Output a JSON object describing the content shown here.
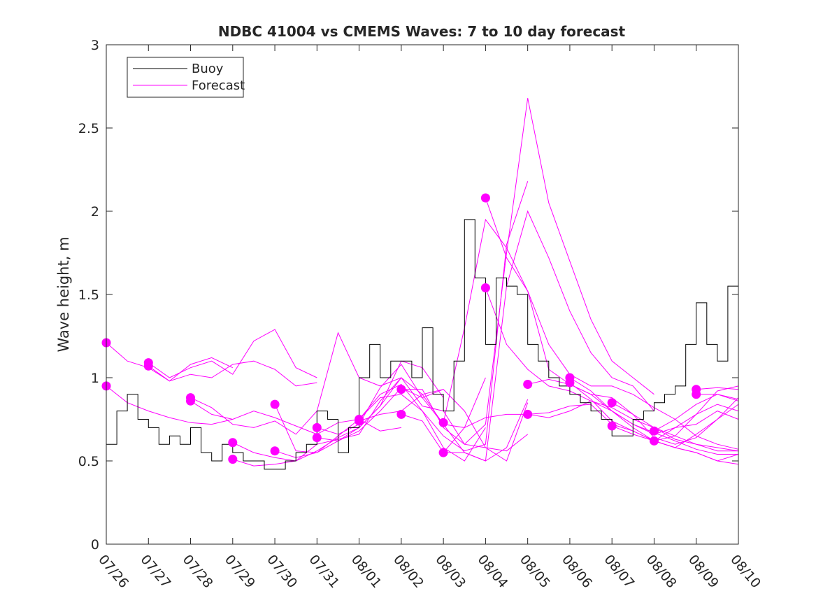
{
  "chart_data": {
    "type": "line",
    "title": "NDBC 41004 vs CMEMS Waves: 7 to 10 day forecast",
    "xlabel": "",
    "ylabel": "Wave height, m",
    "xlim": [
      "07/26",
      "08/10"
    ],
    "ylim": [
      0,
      3
    ],
    "x_ticks": [
      "07/26",
      "07/27",
      "07/28",
      "07/29",
      "07/30",
      "07/31",
      "08/01",
      "08/02",
      "08/03",
      "08/04",
      "08/05",
      "08/06",
      "08/07",
      "08/08",
      "08/09",
      "08/10"
    ],
    "y_ticks": [
      "0",
      "0.5",
      "1",
      "1.5",
      "2",
      "2.5",
      "3"
    ],
    "legend": {
      "placement": "top-left",
      "entries": [
        "Buoy",
        "Forecast"
      ]
    },
    "colors": {
      "buoy": "#000000",
      "forecast": "#ff00ff"
    },
    "buoy": {
      "x": [
        "07/26 00:00",
        "07/26 06:00",
        "07/26 12:00",
        "07/26 18:00",
        "07/27 00:00",
        "07/27 06:00",
        "07/27 12:00",
        "07/27 18:00",
        "07/28 00:00",
        "07/28 06:00",
        "07/28 12:00",
        "07/28 18:00",
        "07/29 00:00",
        "07/29 06:00",
        "07/29 12:00",
        "07/29 18:00",
        "07/30 00:00",
        "07/30 06:00",
        "07/30 12:00",
        "07/30 18:00",
        "07/31 00:00",
        "07/31 06:00",
        "07/31 12:00",
        "07/31 18:00",
        "08/01 00:00",
        "08/01 06:00",
        "08/01 12:00",
        "08/01 18:00",
        "08/02 00:00",
        "08/02 06:00",
        "08/02 12:00",
        "08/02 18:00",
        "08/03 00:00",
        "08/03 06:00",
        "08/03 12:00",
        "08/03 18:00",
        "08/04 00:00",
        "08/04 06:00",
        "08/04 12:00",
        "08/04 18:00",
        "08/05 00:00",
        "08/05 06:00",
        "08/05 12:00",
        "08/05 18:00",
        "08/06 00:00",
        "08/06 06:00",
        "08/06 12:00",
        "08/06 18:00",
        "08/07 00:00",
        "08/07 06:00",
        "08/07 12:00",
        "08/07 18:00",
        "08/08 00:00",
        "08/08 06:00",
        "08/08 12:00",
        "08/08 18:00",
        "08/09 00:00",
        "08/09 06:00",
        "08/09 12:00",
        "08/09 18:00"
      ],
      "values": [
        0.6,
        0.8,
        0.9,
        0.75,
        0.7,
        0.6,
        0.65,
        0.6,
        0.7,
        0.55,
        0.5,
        0.6,
        0.55,
        0.5,
        0.5,
        0.45,
        0.45,
        0.5,
        0.55,
        0.6,
        0.8,
        0.75,
        0.55,
        0.7,
        1.0,
        1.2,
        1.0,
        1.1,
        1.1,
        1.0,
        1.3,
        0.9,
        0.8,
        1.1,
        1.95,
        1.6,
        1.2,
        1.6,
        1.55,
        1.5,
        1.2,
        1.1,
        1.0,
        0.95,
        0.9,
        0.85,
        0.8,
        0.75,
        0.65,
        0.65,
        0.75,
        0.8,
        0.85,
        0.9,
        0.95,
        1.2,
        1.45,
        1.2,
        1.1,
        1.55
      ]
    },
    "forecast_initial_points": {
      "x": [
        "07/26 00:00",
        "07/26 00:00",
        "07/27 00:00",
        "07/27 00:00",
        "07/28 00:00",
        "07/28 00:00",
        "07/29 00:00",
        "07/29 00:00",
        "07/30 00:00",
        "07/30 00:00",
        "07/31 00:00",
        "07/31 00:00",
        "08/01 00:00",
        "08/01 00:00",
        "08/02 00:00",
        "08/02 00:00",
        "08/03 00:00",
        "08/03 00:00",
        "08/04 00:00",
        "08/04 00:00",
        "08/05 00:00",
        "08/05 00:00",
        "08/06 00:00",
        "08/06 00:00",
        "08/07 00:00",
        "08/07 00:00",
        "08/08 00:00",
        "08/08 00:00",
        "08/09 00:00",
        "08/09 00:00"
      ],
      "values": [
        1.21,
        0.95,
        1.09,
        1.07,
        0.88,
        0.86,
        0.61,
        0.51,
        0.84,
        0.56,
        0.7,
        0.64,
        0.75,
        0.74,
        0.93,
        0.78,
        0.73,
        0.55,
        2.08,
        1.54,
        0.96,
        0.78,
        1.0,
        0.97,
        0.85,
        0.71,
        0.68,
        0.62,
        0.93,
        0.9
      ]
    },
    "forecast_series": [
      {
        "start": "07/26",
        "days": [
          0,
          0.5,
          1,
          1.5,
          2,
          2.5,
          3
        ],
        "values": [
          1.21,
          1.1,
          1.06,
          0.98,
          1.08,
          1.12,
          1.06
        ]
      },
      {
        "start": "07/26",
        "days": [
          0,
          0.5,
          1,
          1.5,
          2,
          2.5,
          3
        ],
        "values": [
          0.95,
          0.85,
          0.8,
          0.76,
          0.73,
          0.72,
          0.75
        ]
      },
      {
        "start": "07/27",
        "days": [
          0,
          0.5,
          1,
          1.5,
          2,
          2.5,
          3,
          3.5,
          4
        ],
        "values": [
          1.09,
          1.0,
          1.06,
          1.1,
          1.02,
          1.22,
          1.29,
          1.06,
          1.0
        ]
      },
      {
        "start": "07/27",
        "days": [
          0,
          0.5,
          1,
          1.5,
          2,
          2.5,
          3,
          3.5,
          4
        ],
        "values": [
          1.07,
          0.98,
          1.02,
          1.0,
          1.08,
          1.1,
          1.05,
          0.95,
          0.97
        ]
      },
      {
        "start": "07/28",
        "days": [
          0,
          0.5,
          1,
          1.5,
          2,
          2.5,
          3,
          3.5,
          4,
          4.5,
          5
        ],
        "values": [
          0.88,
          0.82,
          0.72,
          0.7,
          0.74,
          0.66,
          0.8,
          1.27,
          1.0,
          0.95,
          1.0
        ]
      },
      {
        "start": "07/28",
        "days": [
          0,
          0.5,
          1,
          1.5,
          2,
          2.5,
          3,
          3.5,
          4,
          4.5,
          5
        ],
        "values": [
          0.86,
          0.78,
          0.75,
          0.8,
          0.76,
          0.71,
          0.66,
          0.73,
          0.75,
          0.68,
          0.7
        ]
      },
      {
        "start": "07/29",
        "days": [
          0,
          0.5,
          1,
          1.5,
          2,
          2.5,
          3,
          3.5,
          4,
          4.5,
          5
        ],
        "values": [
          0.61,
          0.55,
          0.52,
          0.5,
          0.6,
          0.63,
          0.66,
          0.86,
          1.0,
          0.9,
          0.93
        ]
      },
      {
        "start": "07/29",
        "days": [
          0,
          0.5,
          1,
          1.5,
          2,
          2.5,
          3,
          3.5,
          4,
          4.5,
          5
        ],
        "values": [
          0.51,
          0.47,
          0.48,
          0.5,
          0.56,
          0.64,
          0.7,
          0.83,
          1.1,
          1.06,
          0.88
        ]
      },
      {
        "start": "07/30",
        "days": [
          0,
          0.5,
          1,
          1.5,
          2,
          2.5,
          3,
          3.5,
          4,
          4.5,
          5
        ],
        "values": [
          0.84,
          0.56,
          0.55,
          0.62,
          0.68,
          0.8,
          0.94,
          0.88,
          0.72,
          0.7,
          1.0
        ]
      },
      {
        "start": "07/30",
        "days": [
          0,
          0.5,
          1,
          1.5,
          2,
          2.5,
          3,
          3.5,
          4,
          4.5,
          5
        ],
        "values": [
          0.56,
          0.52,
          0.55,
          0.65,
          0.75,
          0.9,
          0.96,
          0.8,
          0.58,
          0.5,
          0.7
        ]
      },
      {
        "start": "07/31",
        "days": [
          0,
          0.5,
          1,
          1.5,
          2,
          2.5,
          3,
          3.5,
          4,
          4.5,
          5
        ],
        "values": [
          0.7,
          0.66,
          0.72,
          0.94,
          1.08,
          0.88,
          0.93,
          0.8,
          0.58,
          0.56,
          0.66
        ]
      },
      {
        "start": "07/31",
        "days": [
          0,
          0.5,
          1,
          1.5,
          2,
          2.5,
          3,
          3.5,
          4,
          4.5,
          5
        ],
        "values": [
          0.64,
          0.62,
          0.7,
          0.83,
          1.0,
          0.83,
          0.8,
          0.6,
          0.58,
          0.5,
          0.85
        ]
      },
      {
        "start": "08/01",
        "days": [
          0,
          0.5,
          1,
          1.5,
          2,
          2.5,
          3,
          3.5,
          4
        ],
        "values": [
          0.75,
          0.88,
          0.9,
          0.8,
          0.65,
          0.56,
          0.6,
          1.8,
          2.18
        ]
      },
      {
        "start": "08/01",
        "days": [
          0,
          0.5,
          1,
          1.5,
          2,
          2.5,
          3,
          3.5,
          4
        ],
        "values": [
          0.74,
          0.78,
          0.8,
          0.9,
          0.72,
          0.55,
          0.5,
          0.58,
          0.87
        ]
      },
      {
        "start": "08/02",
        "days": [
          0,
          0.5,
          1,
          1.5,
          2,
          2.5,
          3,
          3.5,
          4,
          4.5,
          5,
          5.5,
          6
        ],
        "values": [
          0.93,
          0.93,
          0.7,
          0.6,
          0.72,
          1.75,
          2.68,
          2.05,
          1.7,
          1.35,
          1.1,
          1.0,
          0.9
        ]
      },
      {
        "start": "08/02",
        "days": [
          0,
          0.5,
          1,
          1.5,
          2,
          2.5,
          3,
          3.5,
          4,
          4.5,
          5,
          5.5,
          6
        ],
        "values": [
          0.78,
          0.74,
          0.55,
          0.55,
          0.5,
          1.55,
          2.0,
          1.72,
          1.4,
          1.15,
          1.0,
          0.95,
          0.8
        ]
      },
      {
        "start": "08/03",
        "days": [
          0,
          0.5,
          1,
          1.5,
          2,
          2.5,
          3,
          3.5,
          4,
          4.5,
          5,
          5.5,
          6,
          6.5,
          7
        ],
        "values": [
          0.73,
          1.3,
          1.95,
          1.78,
          1.52,
          1.2,
          1.02,
          0.95,
          0.95,
          0.9,
          0.82,
          0.75,
          0.65,
          0.6,
          0.57
        ]
      },
      {
        "start": "08/03",
        "days": [
          0,
          0.5,
          1,
          1.5,
          2,
          2.5,
          3,
          3.5,
          4,
          4.5,
          5,
          5.5,
          6,
          6.5,
          7
        ],
        "values": [
          0.55,
          0.7,
          0.76,
          0.78,
          0.78,
          0.76,
          0.8,
          0.86,
          0.82,
          0.75,
          0.7,
          0.63,
          0.6,
          0.56,
          0.56
        ]
      },
      {
        "start": "08/04",
        "days": [
          0,
          0.5,
          1,
          1.5,
          2,
          2.5,
          3,
          3.5,
          4,
          4.5,
          5,
          5.5,
          6
        ],
        "values": [
          2.08,
          1.72,
          1.52,
          1.05,
          0.96,
          0.9,
          0.88,
          0.78,
          0.7,
          0.65,
          0.6,
          0.58,
          0.56
        ]
      },
      {
        "start": "08/04",
        "days": [
          0,
          0.5,
          1,
          1.5,
          2,
          2.5,
          3,
          3.5,
          4,
          4.5,
          5,
          5.5,
          6
        ],
        "values": [
          1.54,
          1.2,
          1.05,
          0.95,
          0.92,
          0.86,
          0.8,
          0.72,
          0.67,
          0.62,
          0.57,
          0.54,
          0.54
        ]
      },
      {
        "start": "08/05",
        "days": [
          0,
          0.5,
          1,
          1.5,
          2,
          2.5,
          3,
          3.5,
          4,
          4.5,
          5
        ],
        "values": [
          0.96,
          0.99,
          0.96,
          0.9,
          0.8,
          0.7,
          0.62,
          0.58,
          0.55,
          0.5,
          0.54
        ]
      },
      {
        "start": "08/05",
        "days": [
          0,
          0.5,
          1,
          1.5,
          2,
          2.5,
          3,
          3.5,
          4,
          4.5,
          5
        ],
        "values": [
          0.78,
          0.79,
          0.83,
          0.84,
          0.72,
          0.68,
          0.62,
          0.58,
          0.55,
          0.5,
          0.48
        ]
      },
      {
        "start": "08/06",
        "days": [
          0,
          0.5,
          1,
          1.5,
          2,
          2.5,
          3,
          3.5,
          4
        ],
        "values": [
          1.0,
          0.92,
          0.8,
          0.72,
          0.66,
          0.7,
          0.72,
          0.8,
          0.75
        ]
      },
      {
        "start": "08/06",
        "days": [
          0,
          0.5,
          1,
          1.5,
          2,
          2.5,
          3,
          3.5,
          4
        ],
        "values": [
          0.97,
          0.87,
          0.74,
          0.68,
          0.62,
          0.58,
          0.66,
          0.75,
          0.84
        ]
      },
      {
        "start": "08/07",
        "days": [
          0,
          0.5,
          1,
          1.5,
          2,
          2.5,
          3
        ],
        "values": [
          0.85,
          0.78,
          0.64,
          0.6,
          0.64,
          0.75,
          0.88
        ]
      },
      {
        "start": "08/07",
        "days": [
          0,
          0.5,
          1,
          1.5,
          2,
          2.5,
          3
        ],
        "values": [
          0.71,
          0.66,
          0.62,
          0.65,
          0.78,
          0.92,
          0.95
        ]
      },
      {
        "start": "08/08",
        "days": [
          0,
          0.5,
          1,
          1.5,
          2
        ],
        "values": [
          0.68,
          0.75,
          0.84,
          0.9,
          0.86
        ]
      },
      {
        "start": "08/08",
        "days": [
          0,
          0.5,
          1,
          1.5,
          2
        ],
        "values": [
          0.62,
          0.7,
          0.78,
          0.84,
          0.8
        ]
      },
      {
        "start": "08/09",
        "days": [
          0,
          0.5,
          1
        ],
        "values": [
          0.93,
          0.94,
          0.93
        ]
      },
      {
        "start": "08/09",
        "days": [
          0,
          0.5,
          1
        ],
        "values": [
          0.9,
          0.9,
          0.87
        ]
      }
    ]
  }
}
